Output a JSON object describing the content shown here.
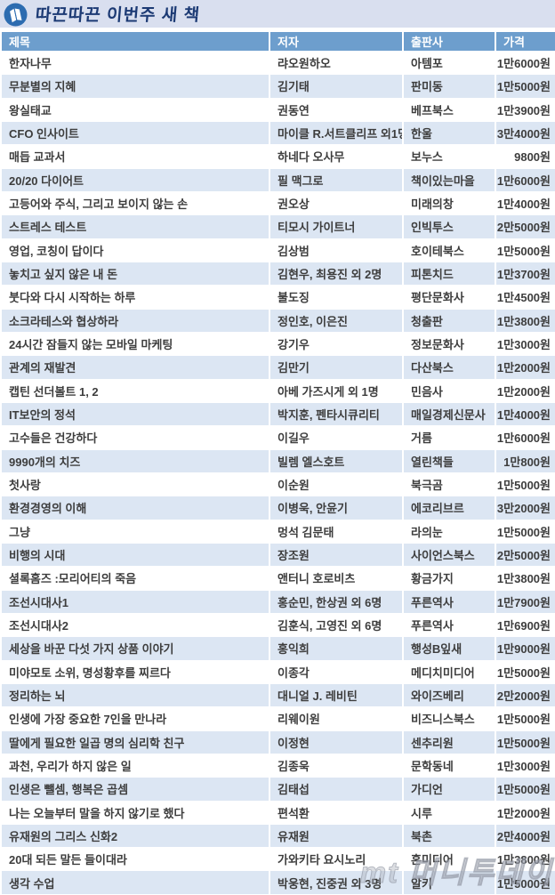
{
  "banner": {
    "title": "따끈따끈 이번주 새 책",
    "icon": "book-icon",
    "colors": {
      "background": "#d9dfef",
      "logo_circle": "#2d6cb0",
      "title_text": "#1c3a74"
    }
  },
  "table": {
    "columns": [
      "제목",
      "저자",
      "출판사",
      "가격"
    ],
    "colors": {
      "header_background": "#6d9ecd",
      "header_text": "#ffffff",
      "row_even": "#dce6f3",
      "row_odd": "#ffffff",
      "cell_text": "#3d3d3d",
      "grid": "#ffffff"
    },
    "rows": [
      [
        "한자나무",
        "랴오원하오",
        "아템포",
        "1만6000원"
      ],
      [
        "무분별의 지혜",
        "김기태",
        "판미동",
        "1만5000원"
      ],
      [
        "왕실태교",
        "권동연",
        "베프북스",
        "1만3900원"
      ],
      [
        "CFO 인사이트",
        "마이클 R.서트클리프 외1명",
        "한울",
        "3만4000원"
      ],
      [
        "매듭 교과서",
        "하네다 오사무",
        "보누스",
        "9800원"
      ],
      [
        "20/20 다이어트",
        "필 맥그로",
        "책이있는마을",
        "1만6000원"
      ],
      [
        "고등어와 주식, 그리고 보이지 않는 손",
        "권오상",
        "미래의창",
        "1만4000원"
      ],
      [
        "스트레스 테스트",
        "티모시 가이트너",
        "인빅투스",
        "2만5000원"
      ],
      [
        "영업, 코칭이 답이다",
        "김상범",
        "호이테북스",
        "1만5000원"
      ],
      [
        "놓치고 싶지 않은 내 돈",
        "김현우, 최용진 외 2명",
        "피톤치드",
        "1만3700원"
      ],
      [
        "붓다와 다시 시작하는 하루",
        "불도징",
        "평단문화사",
        "1만4500원"
      ],
      [
        "소크라테스와 협상하라",
        "정인호, 이은진",
        "청출판",
        "1만3800원"
      ],
      [
        "24시간 잠들지 않는 모바일 마케팅",
        "강기우",
        "정보문화사",
        "1만3000원"
      ],
      [
        "관계의 재발견",
        "김만기",
        "다산북스",
        "1만2000원"
      ],
      [
        "캡틴 선더볼트 1, 2",
        "아베 가즈시게 외 1명",
        "민음사",
        "1만2000원"
      ],
      [
        "IT보안의 정석",
        "박지훈, 펜타시큐리티",
        "매일경제신문사",
        "1만4000원"
      ],
      [
        "고수들은 건강하다",
        "이길우",
        "거름",
        "1만6000원"
      ],
      [
        "9990개의 치즈",
        "빌렘 엘스호트",
        "열린책들",
        "1만800원"
      ],
      [
        "첫사랑",
        "이순원",
        "북극곰",
        "1만5000원"
      ],
      [
        "환경경영의 이해",
        "이병욱, 안윤기",
        "에코리브르",
        "3만2000원"
      ],
      [
        "그냥",
        "멍석 김문태",
        "라의눈",
        "1만5000원"
      ],
      [
        "비행의 시대",
        "장조원",
        "사이언스북스",
        "2만5000원"
      ],
      [
        "셜록홈즈 :모리어티의 죽음",
        "앤터니 호로비츠",
        "황금가지",
        "1만3800원"
      ],
      [
        "조선시대사1",
        "홍순민, 한상권 외 6명",
        "푸른역사",
        "1만7900원"
      ],
      [
        "조선시대사2",
        "김훈식, 고영진 외 6명",
        "푸른역사",
        "1만6900원"
      ],
      [
        "세상을 바꾼 다섯 가지 상품 이야기",
        "홍익희",
        "행성B잎새",
        "1만9000원"
      ],
      [
        "미야모토 소위, 명성황후를 찌르다",
        "이종각",
        "메디치미디어",
        "1만5000원"
      ],
      [
        "정리하는 뇌",
        "대니얼 J. 레비틴",
        "와이즈베리",
        "2만2000원"
      ],
      [
        "인생에 가장 중요한 7인을 만나라",
        "리웨이원",
        "비즈니스북스",
        "1만5000원"
      ],
      [
        "딸에게 필요한 일곱 명의 심리학 친구",
        "이정현",
        "센추리원",
        "1만5000원"
      ],
      [
        "과천, 우리가 하지 않은 일",
        "김종욱",
        "문학동네",
        "1만3000원"
      ],
      [
        "인생은 뺄셈, 행복은 곱셈",
        "김태섭",
        "가디언",
        "1만5000원"
      ],
      [
        "나는 오늘부터 말을 하지 않기로 했다",
        "편석환",
        "시루",
        "1만2000원"
      ],
      [
        "유재원의 그리스 신화2",
        "유재원",
        "북촌",
        "2만4000원"
      ],
      [
        "20대 되든 말든 들이대라",
        "가와키타 요시노리",
        "혼미디어",
        "1만3800원"
      ],
      [
        "생각 수업",
        "박웅현, 진중권 외 3명",
        "알키",
        "1만5000원"
      ]
    ]
  },
  "watermark": {
    "text": "mt 머니투데이"
  }
}
